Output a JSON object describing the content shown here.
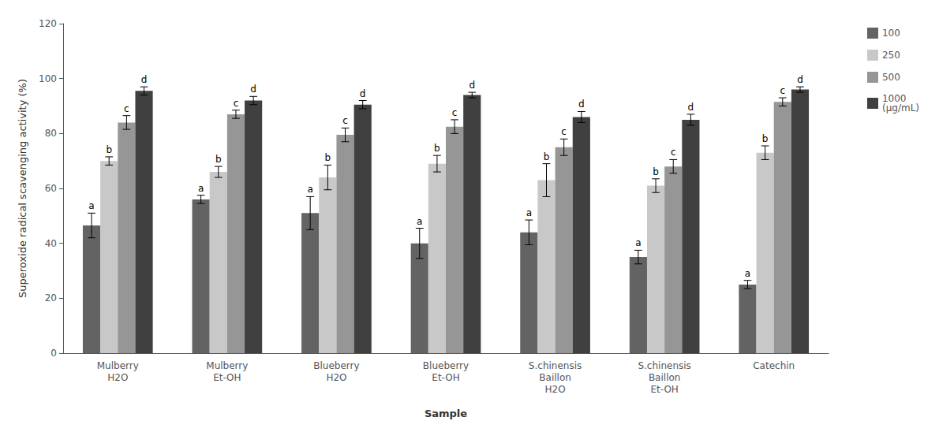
{
  "chart_data": {
    "type": "bar",
    "categories": [
      "Mulberry\nH2O",
      "Mulberry\nEt-OH",
      "Blueberry\nH2O",
      "Blueberry\nEt-OH",
      "S.chinensis\nBaillon\nH2O",
      "S.chinensis\nBaillon\nEt-OH",
      "Catechin"
    ],
    "series": [
      {
        "name": "100",
        "color": "#636363",
        "values": [
          46.5,
          56.0,
          51.0,
          40.0,
          44.0,
          35.0,
          25.0
        ],
        "errors": [
          4.5,
          1.5,
          6.0,
          5.5,
          4.5,
          2.5,
          1.5
        ],
        "annotations": [
          "a",
          "a",
          "a",
          "a",
          "a",
          "a",
          "a"
        ]
      },
      {
        "name": "250",
        "color": "#c8c8c8",
        "values": [
          70.0,
          66.0,
          64.0,
          69.0,
          63.0,
          61.0,
          73.0
        ],
        "errors": [
          1.5,
          2.0,
          4.5,
          3.0,
          6.0,
          2.5,
          2.5
        ],
        "annotations": [
          "b",
          "b",
          "b",
          "b",
          "b",
          "b",
          "b"
        ]
      },
      {
        "name": "500",
        "color": "#969696",
        "values": [
          84.0,
          87.0,
          79.5,
          82.5,
          75.0,
          68.0,
          91.5
        ],
        "errors": [
          2.5,
          1.5,
          2.5,
          2.5,
          3.0,
          2.5,
          1.5
        ],
        "annotations": [
          "c",
          "c",
          "c",
          "c",
          "c",
          "c",
          "c"
        ]
      },
      {
        "name": "1000\n(μg/mL)",
        "color": "#404040",
        "values": [
          95.5,
          92.0,
          90.5,
          94.0,
          86.0,
          85.0,
          96.0
        ],
        "errors": [
          1.5,
          1.5,
          1.5,
          1.0,
          2.0,
          2.0,
          1.0
        ],
        "annotations": [
          "d",
          "d",
          "d",
          "d",
          "d",
          "d",
          "d"
        ]
      }
    ],
    "xlabel": "Sample",
    "ylabel": "Superoxide radical scavenging activity (%)",
    "ylim": [
      0,
      120
    ],
    "yticks": [
      0,
      20,
      40,
      60,
      80,
      100,
      120
    ],
    "grid": false,
    "legend": "right"
  }
}
